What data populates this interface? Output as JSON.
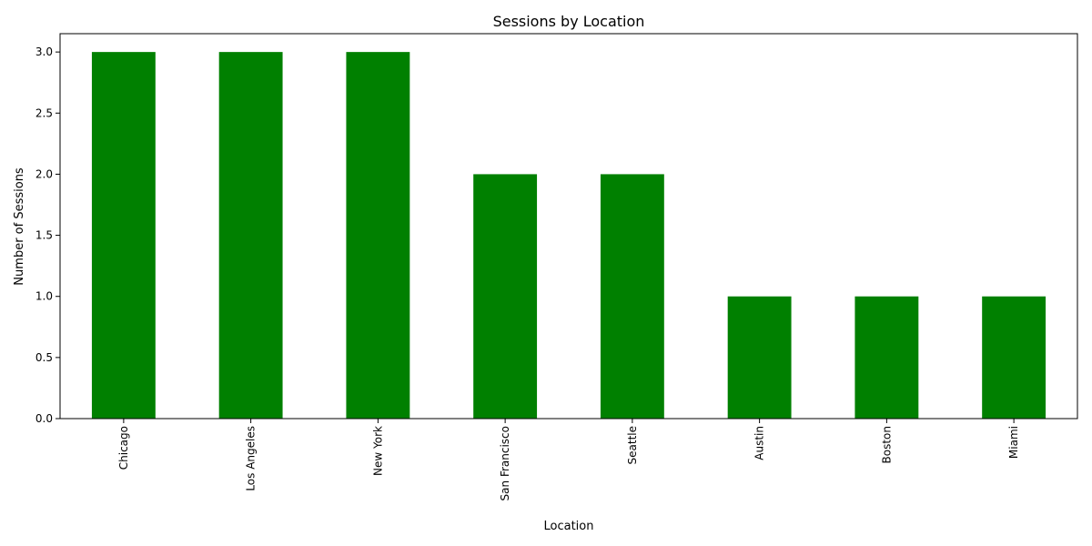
{
  "chart_data": {
    "type": "bar",
    "title": "Sessions by Location",
    "xlabel": "Location",
    "ylabel": "Number of Sessions",
    "categories": [
      "Chicago",
      "Los Angeles",
      "New York",
      "San Francisco",
      "Seattle",
      "Austin",
      "Boston",
      "Miami"
    ],
    "values": [
      3,
      3,
      3,
      2,
      2,
      1,
      1,
      1
    ],
    "ylim": [
      0,
      3.15
    ],
    "yticks": [
      0.0,
      0.5,
      1.0,
      1.5,
      2.0,
      2.5,
      3.0
    ],
    "ytick_labels": [
      "0.0",
      "0.5",
      "1.0",
      "1.5",
      "2.0",
      "2.5",
      "3.0"
    ],
    "bar_color": "#008000",
    "grid": false,
    "legend": "none",
    "x_tick_rotation": "vertical"
  }
}
